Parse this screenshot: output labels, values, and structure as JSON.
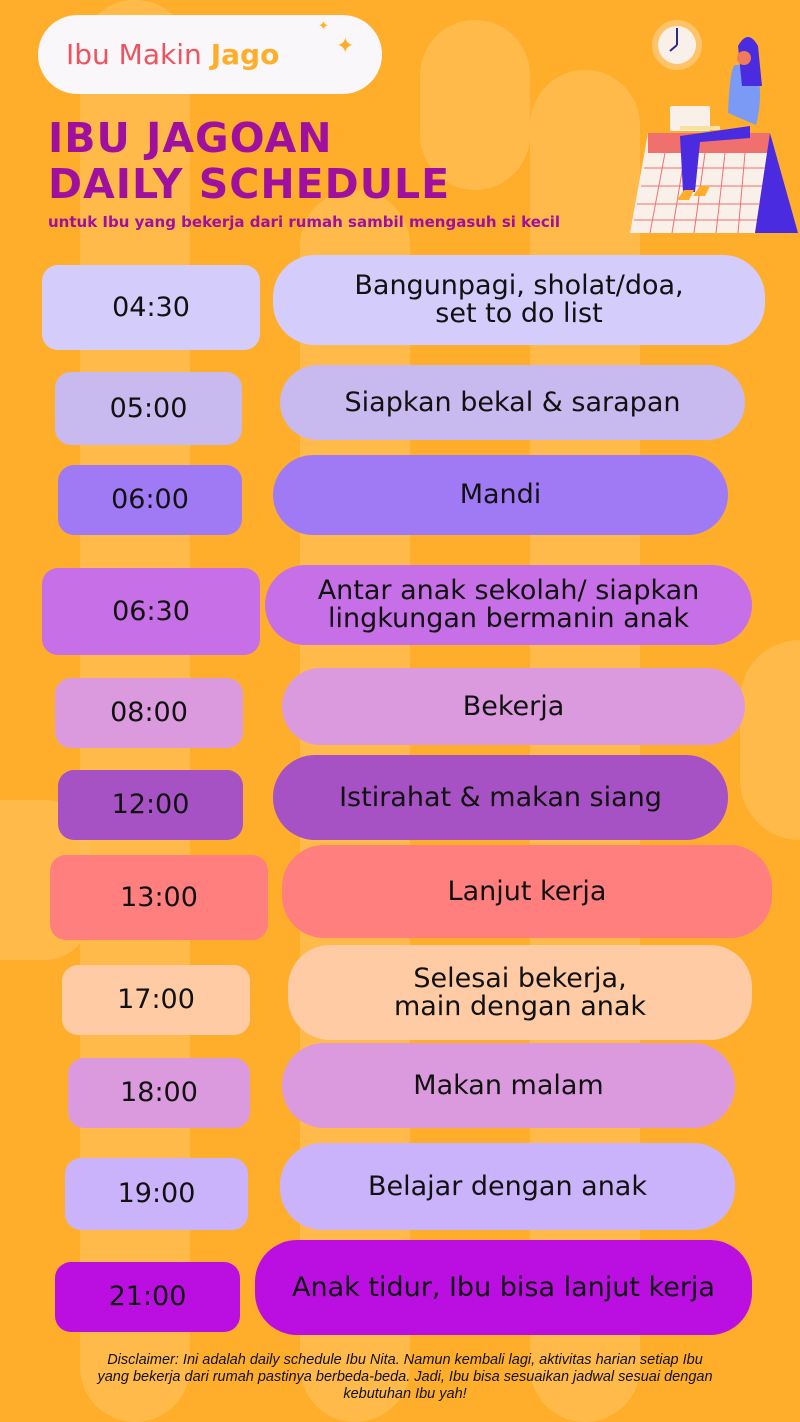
{
  "brand": {
    "part1": "Ibu Makin",
    "part2": "Jago"
  },
  "title": {
    "line1": "IBU JAGOAN",
    "line2": "DAILY SCHEDULE",
    "subtitle": "untuk Ibu yang bekerja dari rumah sambil mengasuh si kecil"
  },
  "schedule": [
    {
      "time": "04:30",
      "activity": "Bangunpagi, sholat/doa,\nset to do list",
      "color": "#d4ccfb"
    },
    {
      "time": "05:00",
      "activity": "Siapkan bekal & sarapan",
      "color": "#c8b9ee"
    },
    {
      "time": "06:00",
      "activity": "Mandi",
      "color": "#a07af5"
    },
    {
      "time": "06:30",
      "activity": "Antar anak sekolah/ siapkan\nlingkungan bermanin anak",
      "color": "#c76fe6"
    },
    {
      "time": "08:00",
      "activity": "Bekerja",
      "color": "#dc9ade"
    },
    {
      "time": "12:00",
      "activity": "Istirahat & makan siang",
      "color": "#a651c4"
    },
    {
      "time": "13:00",
      "activity": "Lanjut kerja",
      "color": "#fe7f7e"
    },
    {
      "time": "17:00",
      "activity": "Selesai bekerja,\nmain dengan anak",
      "color": "#fecba4"
    },
    {
      "time": "18:00",
      "activity": "Makan malam",
      "color": "#dc9ade"
    },
    {
      "time": "19:00",
      "activity": "Belajar dengan anak",
      "color": "#cbb3fb"
    },
    {
      "time": "21:00",
      "activity": "Anak tidur, Ibu bisa lanjut kerja",
      "color": "#bb0fe2"
    }
  ],
  "disclaimer": "Disclaimer: Ini adalah daily schedule Ibu Nita. Namun kembali lagi, aktivitas harian setiap Ibu yang bekerja dari rumah pastinya berbeda-beda. Jadi, Ibu bisa sesuaikan jadwal sesuai dengan kebutuhan Ibu yah!",
  "colors": {
    "background": "#ffae2b",
    "title": "#a0109f",
    "brand_red": "#f0525e"
  }
}
